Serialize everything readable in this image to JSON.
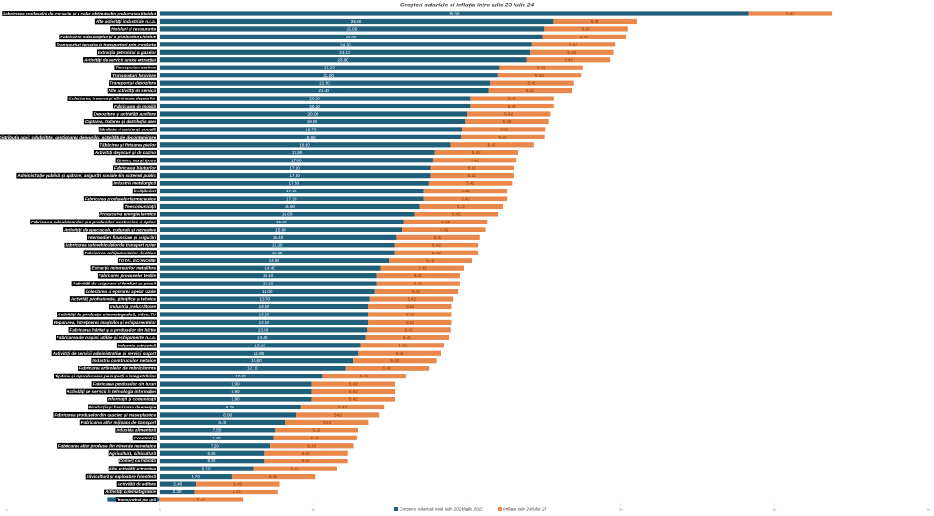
{
  "chart_data": {
    "type": "stacked-barh",
    "title": "Creșteri salariale și inflația între iulie 23-iulie 24",
    "categories": [
      "Fabricarea produselor de cocserie și a celor obținute din prelucrarea țițeiului",
      "Alte activități industriale n.c.a.",
      "Hoteluri și restaurante",
      "Fabricarea substanțelor și a produselor chimice",
      "Transporturi terestre și transporturi prin conducte",
      "Extracția petrolului și gazelor",
      "Activități de servicii anexe extracției",
      "Transporturi aeriene",
      "Transporturi feroviare",
      "Transport și depozitare",
      "Alte activități de servicii",
      "Colectarea, tratarea și eliminarea deșeurilor",
      "Fabricarea de mobilă",
      "Depozitare și activități auxiliare",
      "Captarea, tratarea și distribuția apei",
      "Sănătate și asistență socială",
      "Distribuția apei; salubritate, gestionarea deșeurilor, activități de decontaminare",
      "Tăbăcirea și finisarea pieilor",
      "Activități de jocuri și de cazino",
      "Ciment, var și ipsos",
      "Fabricarea băuturilor",
      "Administrație publică și apărare; asigurări sociale din sistemul public",
      "Industria metalurgică",
      "Învățământ",
      "Fabricarea produselor farmaceutice",
      "Telecomunicații",
      "Producerea energiei termice",
      "Fabricarea calculatoarelor și a produselor electronice și optice",
      "Activități de spectacole, culturale și recreative",
      "Intermedieri financiare și asigurări",
      "Fabricarea autovehiculelor de transport rutier",
      "Fabricarea echipamentelor electrice",
      "TOTAL ECONOMIE",
      "Extracția minereurilor metalifere",
      "Fabricarea produselor textile",
      "Activități de asigurare și fonduri de pensii",
      "Colectarea și epurarea apelor uzate",
      "Activități profesionale, științifice și tehnice",
      "Industria prelucrătoare",
      "Activități de producție cinematografică, video, TV",
      "Repararea, întreținerea mașinilor și echipamentelor",
      "Fabricarea hârtiei și a produselor din hârtie",
      "Fabricarea de mașini, utilaje și echipamente n.c.a.",
      "Industria extractivă",
      "Activități de servicii administrative și servicii suport",
      "Industria construcțiilor metalice",
      "Fabricarea articolelor de îmbrăcăminte",
      "Tipărire și reproducerea pe suporți a înregistrărilor",
      "Fabricarea produselor din tutun",
      "Activități de servicii în tehnologia informației",
      "Informații și comunicații",
      "Producția și furnizarea de energie",
      "Fabricarea produselor din cauciuc și mase plastice",
      "Fabricarea altor mijloace de transport",
      "Industria alimentară",
      "Construcții",
      "Fabricarea altor produse din minerale nemetalice",
      "Agricultură, silvicultură",
      "Comerț cu ridicata",
      "Alte activități extractive",
      "Silvicultură și exploatare forestieră",
      "Activități de editare",
      "Activități cinematografice",
      "Transporturi pe apă"
    ],
    "series": [
      {
        "name": "Creștere salarială netă iulie 2024/iulie 2023",
        "color": "#1f5f7a",
        "values": [
          38.3,
          25.6,
          25.0,
          24.9,
          24.2,
          24.1,
          23.9,
          22.1,
          22.0,
          21.5,
          21.4,
          20.2,
          20.2,
          20.0,
          19.9,
          19.7,
          19.6,
          18.9,
          17.9,
          17.8,
          17.6,
          17.6,
          17.5,
          17.2,
          17.2,
          16.9,
          16.6,
          15.9,
          15.8,
          15.4,
          15.3,
          15.3,
          14.9,
          14.4,
          14.1,
          14.1,
          14.0,
          13.7,
          13.6,
          13.6,
          13.6,
          13.5,
          13.4,
          13.1,
          12.9,
          12.6,
          12.1,
          10.6,
          9.9,
          9.9,
          9.9,
          9.2,
          8.9,
          8.2,
          7.5,
          7.4,
          7.2,
          6.8,
          6.8,
          6.1,
          4.7,
          2.4,
          2.3,
          -3.4
        ],
        "value_labels": [
          "38.30",
          "25.60",
          "25.00",
          "24.90",
          "24.20",
          "24.10",
          "23.90",
          "22.10",
          "22.00",
          "21.50",
          "21.40",
          "20.20",
          "20.20",
          "20.00",
          "19.90",
          "19.70",
          "19.60",
          "18.90",
          "17.90",
          "17.80",
          "17.60",
          "17.60",
          "17.50",
          "17.20",
          "17.20",
          "16.90",
          "16.60",
          "15.90",
          "15.80",
          "15.40",
          "15.30",
          "15.30",
          "14.90",
          "14.40",
          "14.10",
          "14.10",
          "14.00",
          "13.70",
          "13.60",
          "13.60",
          "13.60",
          "13.50",
          "13.40",
          "13.10",
          "12.90",
          "12.60",
          "12.10",
          "10.60",
          "9.90",
          "9.90",
          "9.90",
          "9.20",
          "8.90",
          "8.20",
          "7.50",
          "7.40",
          "7.20",
          "6.80",
          "6.80",
          "6.10",
          "4.70",
          "2.40",
          "2.30",
          "-3.40"
        ]
      },
      {
        "name": "Inflația iulie 24/iulie 23",
        "color": "#e8884a",
        "values": [
          5.42,
          5.42,
          5.42,
          5.42,
          5.42,
          5.42,
          5.42,
          5.42,
          5.42,
          5.42,
          5.42,
          5.42,
          5.42,
          5.42,
          5.42,
          5.42,
          5.42,
          5.42,
          5.42,
          5.42,
          5.42,
          5.42,
          5.42,
          5.42,
          5.42,
          5.42,
          5.42,
          5.42,
          5.42,
          5.42,
          5.42,
          5.42,
          5.42,
          5.42,
          5.42,
          5.42,
          5.42,
          5.42,
          5.42,
          5.42,
          5.42,
          5.42,
          5.42,
          5.42,
          5.42,
          5.42,
          5.42,
          5.42,
          5.42,
          5.42,
          5.42,
          5.42,
          5.42,
          5.42,
          5.42,
          5.42,
          5.42,
          5.42,
          5.42,
          5.42,
          5.42,
          5.42,
          5.42,
          5.42
        ]
      }
    ],
    "xlim": [
      -10,
      50
    ],
    "xticks": [
      -10,
      0,
      10,
      20,
      30,
      40,
      50
    ]
  }
}
